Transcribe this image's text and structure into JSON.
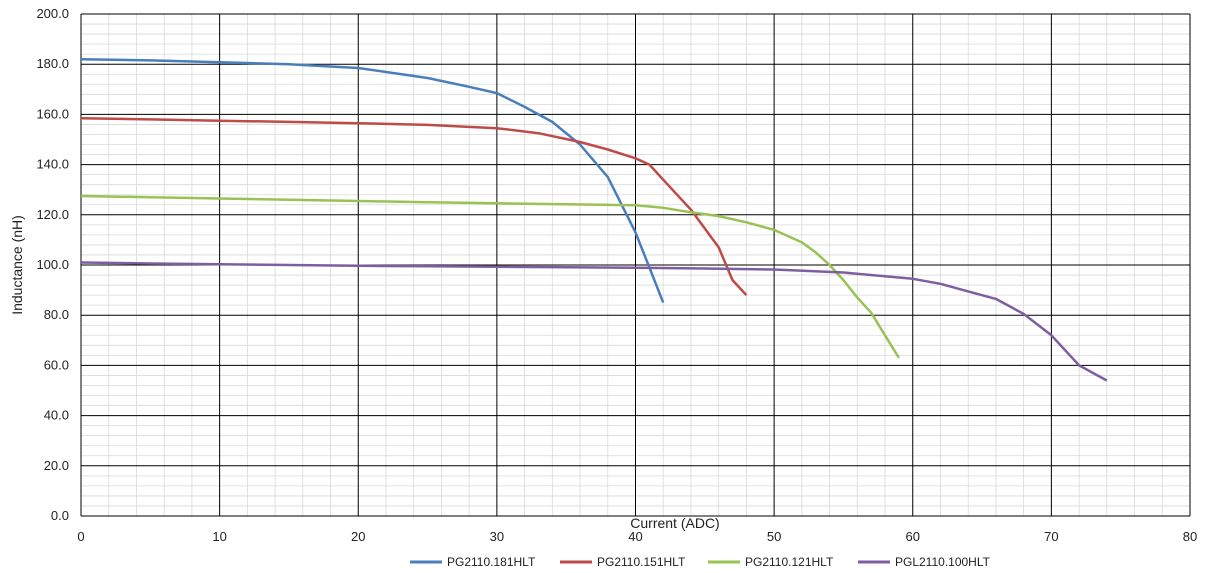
{
  "chart_data": {
    "type": "line",
    "title": "",
    "xlabel": "Current (ADC)",
    "ylabel": "Inductance (nH)",
    "xlim": [
      0,
      80
    ],
    "ylim": [
      0,
      200
    ],
    "x_ticks": [
      "0",
      "10",
      "20",
      "30",
      "40",
      "50",
      "60",
      "70",
      "80"
    ],
    "y_ticks": [
      "0.0",
      "20.0",
      "40.0",
      "60.0",
      "80.0",
      "100.0",
      "120.0",
      "140.0",
      "160.0",
      "180.0",
      "200.0"
    ],
    "grid": true,
    "legend_position": "bottom",
    "series": [
      {
        "name": "PG2110.181HLT",
        "color": "#4a7ebb",
        "x": [
          0,
          5,
          10,
          15,
          20,
          25,
          28,
          30,
          32,
          34,
          36,
          38,
          40,
          41,
          42
        ],
        "y": [
          182,
          181.5,
          180.8,
          180,
          178.5,
          174.5,
          171,
          168.5,
          163,
          157,
          148,
          135,
          113,
          99,
          85
        ]
      },
      {
        "name": "PG2110.151HLT",
        "color": "#be4b48",
        "x": [
          0,
          5,
          10,
          15,
          20,
          25,
          30,
          33,
          36,
          38,
          40,
          41,
          42,
          44,
          46,
          47,
          48
        ],
        "y": [
          158.5,
          158,
          157.5,
          157,
          156.5,
          155.8,
          154.5,
          152.5,
          149,
          146,
          142.5,
          140,
          134,
          122,
          107,
          94,
          88
        ]
      },
      {
        "name": "PG2110.121HLT",
        "color": "#98c254",
        "x": [
          0,
          5,
          10,
          15,
          20,
          25,
          30,
          35,
          40,
          42,
          44,
          46,
          48,
          50,
          52,
          53,
          54,
          55,
          56,
          57,
          58,
          59
        ],
        "y": [
          127.5,
          127,
          126.5,
          126,
          125.5,
          125,
          124.6,
          124.2,
          123.8,
          122.8,
          121,
          119.5,
          117,
          114,
          109,
          105,
          100,
          94,
          87,
          81,
          72,
          63
        ]
      },
      {
        "name": "PGL2110.100HLT",
        "color": "#7d5fa0",
        "x": [
          0,
          5,
          10,
          15,
          20,
          25,
          30,
          35,
          40,
          45,
          50,
          55,
          60,
          62,
          64,
          66,
          68,
          70,
          72,
          74
        ],
        "y": [
          101,
          100.6,
          100.3,
          100,
          99.7,
          99.5,
          99.3,
          99.1,
          98.9,
          98.6,
          98.2,
          97,
          94.5,
          92.5,
          89.5,
          86.5,
          80.5,
          72,
          60,
          54
        ]
      }
    ]
  }
}
